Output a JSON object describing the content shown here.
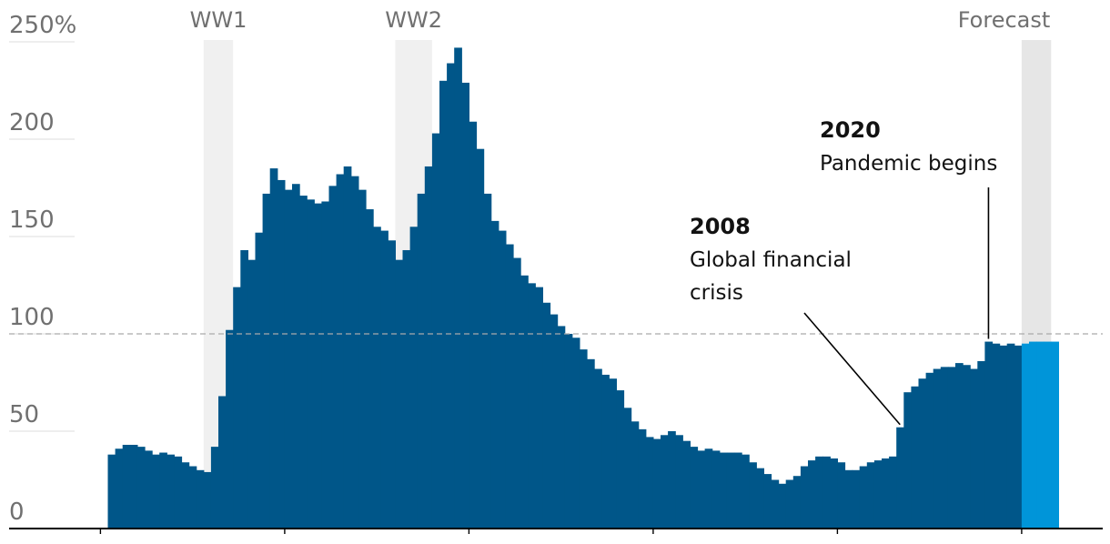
{
  "chart_data": {
    "type": "bar",
    "y_unit": "%",
    "ylim": [
      0,
      250
    ],
    "y_ticks": [
      {
        "value": 0,
        "label": "0"
      },
      {
        "value": 50,
        "label": "50"
      },
      {
        "value": 100,
        "label": "100"
      },
      {
        "value": 150,
        "label": "150"
      },
      {
        "value": 200,
        "label": "200"
      },
      {
        "value": 250,
        "label": "250%"
      }
    ],
    "reference_line": {
      "value": 100,
      "style": "dashed"
    },
    "xlim": [
      1900,
      2029
    ],
    "x_tick_values": [
      1900,
      1925,
      1950,
      1975,
      2000,
      2025
    ],
    "shaded_periods": [
      {
        "label": "WW1",
        "start": 1914,
        "end": 1918
      },
      {
        "label": "WW2",
        "start": 1940,
        "end": 1945
      },
      {
        "label": "Forecast",
        "start": 2025,
        "end": 2029
      }
    ],
    "series": [
      {
        "style": "historical",
        "color": "#005689",
        "start_year": 1901,
        "values": [
          38,
          41,
          43,
          43,
          42,
          40,
          38,
          39,
          38,
          37,
          34,
          32,
          30,
          29,
          42,
          68,
          102,
          124,
          143,
          138,
          152,
          172,
          185,
          179,
          174,
          177,
          171,
          169,
          167,
          168,
          176,
          182,
          186,
          181,
          174,
          164,
          155,
          153,
          148,
          138,
          143,
          155,
          172,
          186,
          203,
          230,
          239,
          247,
          229,
          209,
          195,
          172,
          158,
          153,
          146,
          139,
          130,
          126,
          124,
          116,
          110,
          104,
          100,
          98,
          92,
          87,
          82,
          79,
          77,
          71,
          62,
          55,
          51,
          47,
          46,
          48,
          50,
          48,
          45,
          42,
          40,
          41,
          40,
          39,
          39,
          39,
          38,
          34,
          31,
          28,
          25,
          23,
          25,
          27,
          32,
          35,
          37,
          37,
          36,
          34,
          30,
          30,
          32,
          34,
          35,
          36,
          37,
          52,
          70,
          73,
          77,
          80,
          82,
          83,
          83,
          85,
          84,
          82,
          86,
          96,
          95,
          94,
          95,
          94
        ],
        "value_labels": []
      },
      {
        "style": "forecast",
        "color": "#0095d9",
        "start_year": 2025,
        "values": [
          95,
          96,
          96,
          96,
          96
        ],
        "value_labels": []
      }
    ],
    "annotations": [
      {
        "year_label": "2008",
        "lines": [
          "Global financial",
          "crisis"
        ],
        "target_year": 2008
      },
      {
        "year_label": "2020",
        "lines": [
          "Pandemic begins"
        ],
        "target_year": 2020
      }
    ],
    "title": "",
    "xlabel": "",
    "ylabel": ""
  },
  "colors": {
    "historical": "#005689",
    "forecast": "#0095d9",
    "shade": "#f0f0f0",
    "forecast_shade": "#e6e6e6",
    "axis": "#000000",
    "gridline": "#dcdcdc",
    "reference": "#aaaaaa"
  }
}
